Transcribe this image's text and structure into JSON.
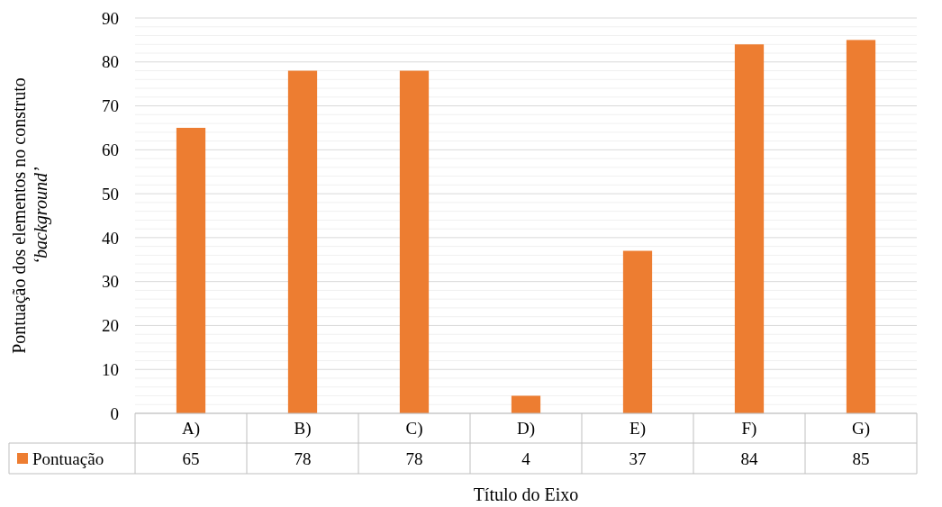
{
  "chart_data": {
    "type": "bar",
    "xlabel": "Título do Eixo",
    "ylabel": "Pontuação dos elementos no construto\n‘background’",
    "categories": [
      "A)",
      "B)",
      "C)",
      "D)",
      "E)",
      "F)",
      "G)"
    ],
    "series": [
      {
        "name": "Pontuação",
        "color": "#ed7d31",
        "values": [
          65,
          78,
          78,
          4,
          37,
          84,
          85
        ]
      }
    ],
    "ylim": [
      0,
      90
    ],
    "yticks": [
      0,
      {
        "value": 2,
        "label": null
      },
      {
        "value": 4,
        "label": null
      },
      {
        "value": 6,
        "label": null
      },
      {
        "value": 8,
        "label": null
      },
      10,
      {
        "value": 12,
        "label": null
      },
      {
        "value": 14,
        "label": null
      },
      {
        "value": 16,
        "label": null
      },
      {
        "value": 18,
        "label": null
      },
      20,
      {
        "value": 22,
        "label": null
      },
      {
        "value": 24,
        "label": null
      },
      {
        "value": 26,
        "label": null
      },
      {
        "value": 28,
        "label": null
      },
      30,
      {
        "value": 32,
        "label": null
      },
      {
        "value": 34,
        "label": null
      },
      {
        "value": 36,
        "label": null
      },
      {
        "value": 38,
        "label": null
      },
      40,
      {
        "value": 42,
        "label": null
      },
      {
        "value": 44,
        "label": null
      },
      {
        "value": 46,
        "label": null
      },
      {
        "value": 48,
        "label": null
      },
      50,
      {
        "value": 52,
        "label": null
      },
      {
        "value": 54,
        "label": null
      },
      {
        "value": 56,
        "label": null
      },
      {
        "value": 58,
        "label": null
      },
      60,
      {
        "value": 62,
        "label": null
      },
      {
        "value": 64,
        "label": null
      },
      {
        "value": 66,
        "label": null
      },
      {
        "value": 68,
        "label": null
      },
      70,
      {
        "value": 72,
        "label": null
      },
      {
        "value": 74,
        "label": null
      },
      {
        "value": 76,
        "label": null
      },
      {
        "value": 78,
        "label": null
      },
      80,
      {
        "value": 82,
        "label": null
      },
      {
        "value": 84,
        "label": null
      },
      {
        "value": 86,
        "label": null
      },
      {
        "value": 88,
        "label": null
      },
      90
    ],
    "grid": "y",
    "legend": "bottom",
    "data_labels": true
  }
}
